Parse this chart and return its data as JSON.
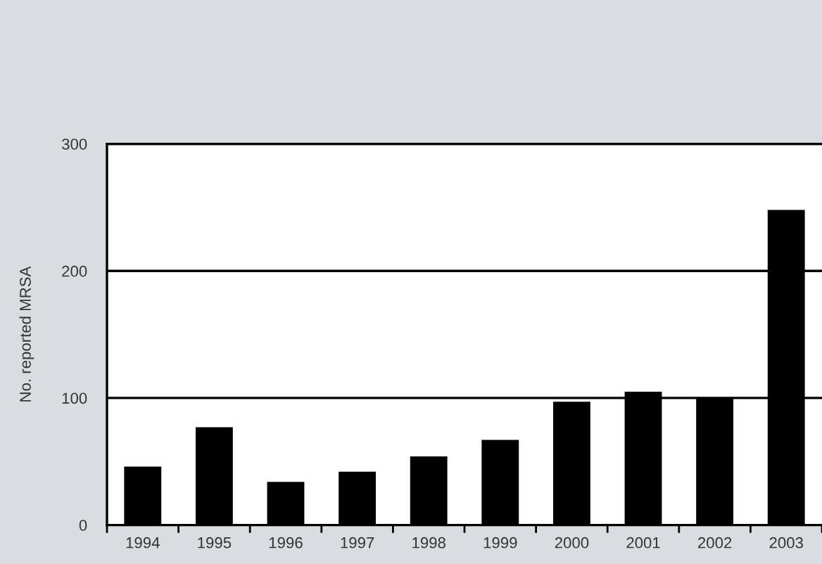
{
  "chart_data": {
    "type": "bar",
    "ylabel": "No. reported MRSA",
    "categories": [
      "1994",
      "1995",
      "1996",
      "1997",
      "1998",
      "1999",
      "2000",
      "2001",
      "2002",
      "2003"
    ],
    "values": [
      46,
      77,
      34,
      42,
      54,
      67,
      97,
      105,
      100,
      248
    ],
    "color": "#000000",
    "ylim": [
      0,
      300
    ],
    "yticks": [
      0,
      100,
      200,
      300
    ],
    "grid": "y"
  }
}
